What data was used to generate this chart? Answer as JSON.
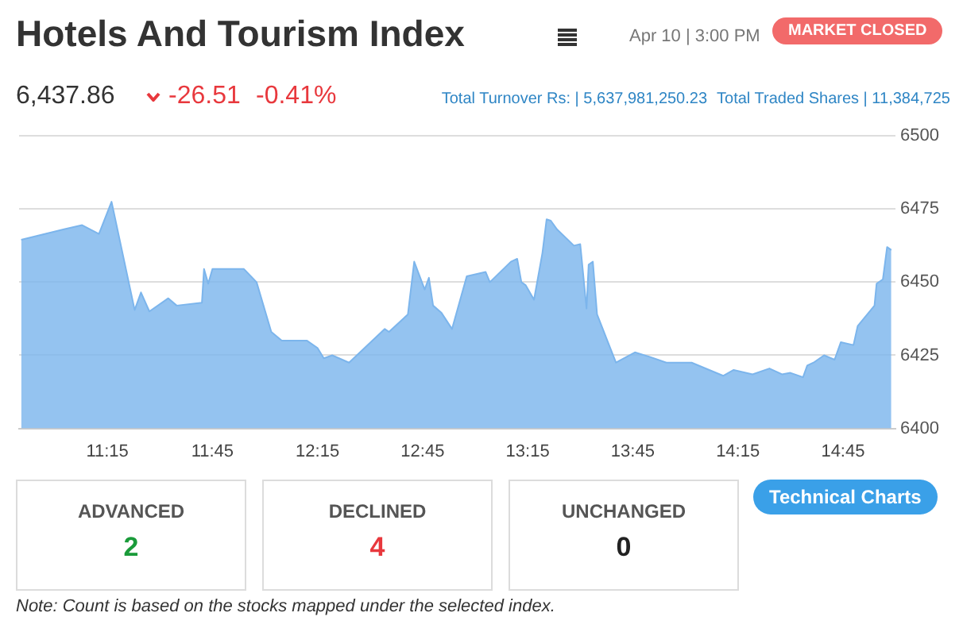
{
  "chart_data": [
    {
      "type": "area",
      "title": "Hotels And Tourism Index",
      "annotations": [
        "Apr 10 | 3:00 PM",
        "MARKET CLOSED",
        "6,437.86",
        "-26.51",
        "-0.41%",
        "Total Turnover Rs: | 5,637,981,250.23",
        "Total Traded Shares | 11,384,725"
      ],
      "x": [
        10.84,
        11.04,
        11.13,
        11.21,
        11.27,
        11.38,
        11.41,
        11.45,
        11.54,
        11.58,
        11.7,
        11.71,
        11.73,
        11.75,
        11.9,
        11.96,
        12.03,
        12.08,
        12.2,
        12.25,
        12.28,
        12.32,
        12.4,
        12.57,
        12.59,
        12.68,
        12.71,
        12.76,
        12.78,
        12.8,
        12.84,
        12.89,
        12.96,
        13.05,
        13.07,
        13.17,
        13.2,
        13.22,
        13.24,
        13.28,
        13.32,
        13.34,
        13.36,
        13.39,
        13.47,
        13.5,
        13.53,
        13.54,
        13.56,
        13.58,
        13.67,
        13.76,
        13.83,
        13.91,
        14.03,
        14.18,
        14.23,
        14.32,
        14.4,
        14.46,
        14.5,
        14.56,
        14.58,
        14.61,
        14.66,
        14.71,
        14.74,
        14.8,
        14.82,
        14.9,
        14.91,
        14.94,
        14.96,
        14.98
      ],
      "series": [
        {
          "color": "#7cb5ec",
          "values": [
            6464.5,
            6468,
            6469.5,
            6466.5,
            6477.5,
            6440.5,
            6446.5,
            6440,
            6444.5,
            6442,
            6443,
            6454.5,
            6449.5,
            6454.5,
            6454.5,
            6450,
            6433,
            6430,
            6430,
            6427.5,
            6424,
            6425,
            6422.5,
            6434,
            6433,
            6439,
            6457,
            6447.5,
            6451.5,
            6442,
            6439.5,
            6434,
            6452,
            6453.5,
            6450,
            6457,
            6458,
            6450,
            6449,
            6444,
            6460,
            6471.5,
            6471,
            6468,
            6462.5,
            6463,
            6441,
            6456,
            6457,
            6439,
            6422.5,
            6426,
            6424.5,
            6422.5,
            6422.5,
            6418,
            6420,
            6418.5,
            6420.5,
            6418.5,
            6419,
            6417.5,
            6421.5,
            6422.5,
            6425,
            6423.5,
            6429.5,
            6428.5,
            6435,
            6442,
            6449.5,
            6451,
            6462,
            6461
          ]
        }
      ],
      "xlim": [
        10.83,
        15.0
      ],
      "xticks": [
        {
          "value": 11.25,
          "label": "11:15"
        },
        {
          "value": 11.75,
          "label": "11:45"
        },
        {
          "value": 12.25,
          "label": "12:15"
        },
        {
          "value": 12.75,
          "label": "12:45"
        },
        {
          "value": 13.25,
          "label": "13:15"
        },
        {
          "value": 13.75,
          "label": "13:45"
        },
        {
          "value": 14.25,
          "label": "14:15"
        },
        {
          "value": 14.75,
          "label": "14:45"
        }
      ],
      "ylim": [
        6400,
        6500
      ],
      "yticks": [
        6400,
        6425,
        6450,
        6475,
        6500
      ],
      "grid": "y"
    },
    {
      "type": "other",
      "categories": [
        "ADVANCED",
        "DECLINED",
        "UNCHANGED"
      ],
      "values": [
        2,
        4,
        0
      ],
      "colors": [
        "#1a9b3a",
        "#e8383d",
        "#222222"
      ],
      "data_labels": true,
      "annotations": [
        "Technical Charts",
        "Note: Count is based on the stocks mapped under the selected index."
      ]
    }
  ]
}
